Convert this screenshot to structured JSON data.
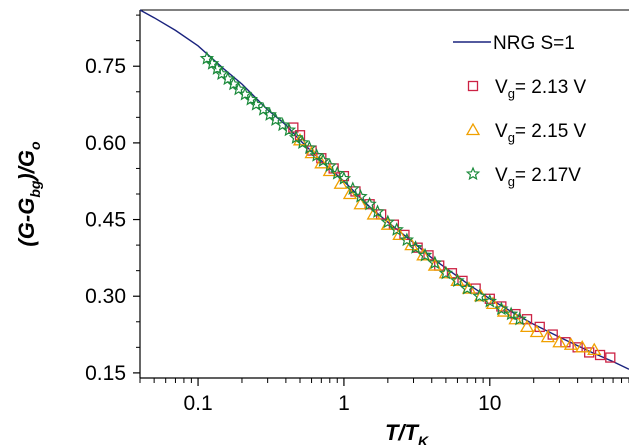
{
  "chart_data": {
    "type": "scatter",
    "xscale": "log",
    "xlim": [
      0.04,
      90
    ],
    "ylim": [
      0.14,
      0.86
    ],
    "x_ticks": [
      {
        "value": 0.1,
        "label": "0.1"
      },
      {
        "value": 1,
        "label": "1"
      },
      {
        "value": 10,
        "label": "10"
      }
    ],
    "y_ticks": [
      {
        "value": 0.15,
        "label": "0.15"
      },
      {
        "value": 0.3,
        "label": "0.30"
      },
      {
        "value": 0.45,
        "label": "0.45"
      },
      {
        "value": 0.6,
        "label": "0.60"
      },
      {
        "value": 0.75,
        "label": "0.75"
      }
    ],
    "xlabel": {
      "main": "T/T",
      "sub": "K"
    },
    "ylabel": {
      "pre": "(G-G",
      "sub1": "bg",
      "mid": ")/G",
      "sub2": "o"
    },
    "legend_position": "top-right",
    "series": [
      {
        "name": "NRG S=1",
        "marker": "line",
        "color": "#1a237e",
        "points": [
          [
            0.04,
            0.86
          ],
          [
            0.05,
            0.845
          ],
          [
            0.07,
            0.82
          ],
          [
            0.1,
            0.79
          ],
          [
            0.15,
            0.745
          ],
          [
            0.2,
            0.715
          ],
          [
            0.3,
            0.665
          ],
          [
            0.4,
            0.635
          ],
          [
            0.5,
            0.605
          ],
          [
            0.7,
            0.565
          ],
          [
            1.0,
            0.525
          ],
          [
            1.5,
            0.475
          ],
          [
            2.0,
            0.445
          ],
          [
            3.0,
            0.405
          ],
          [
            4.0,
            0.375
          ],
          [
            5.0,
            0.355
          ],
          [
            7.0,
            0.325
          ],
          [
            10.0,
            0.295
          ],
          [
            15.0,
            0.265
          ],
          [
            20.0,
            0.245
          ],
          [
            30.0,
            0.22
          ],
          [
            50.0,
            0.19
          ],
          [
            70.0,
            0.172
          ],
          [
            90.0,
            0.157
          ]
        ]
      },
      {
        "name": "V<sub>g</sub>= 2.13 V",
        "legend": {
          "pre": "V",
          "sub": "g",
          "post": "= 2.13 V"
        },
        "marker": "square",
        "color": "#cc2244",
        "points": [
          [
            0.45,
            0.63
          ],
          [
            0.5,
            0.615
          ],
          [
            0.6,
            0.585
          ],
          [
            0.7,
            0.57
          ],
          [
            0.85,
            0.55
          ],
          [
            1.0,
            0.535
          ],
          [
            1.2,
            0.505
          ],
          [
            1.5,
            0.48
          ],
          [
            1.8,
            0.46
          ],
          [
            2.2,
            0.44
          ],
          [
            2.6,
            0.42
          ],
          [
            3.2,
            0.395
          ],
          [
            3.8,
            0.38
          ],
          [
            4.5,
            0.36
          ],
          [
            5.5,
            0.345
          ],
          [
            6.5,
            0.33
          ],
          [
            8.0,
            0.315
          ],
          [
            10.0,
            0.295
          ],
          [
            12.0,
            0.28
          ],
          [
            15.0,
            0.265
          ],
          [
            18.0,
            0.255
          ],
          [
            22.0,
            0.24
          ],
          [
            27.0,
            0.225
          ],
          [
            33.0,
            0.21
          ],
          [
            40.0,
            0.2
          ],
          [
            48.0,
            0.19
          ],
          [
            57.0,
            0.185
          ],
          [
            67.0,
            0.18
          ]
        ]
      },
      {
        "name": "V<sub>g</sub>= 2.15 V",
        "legend": {
          "pre": "V",
          "sub": "g",
          "post": "= 2.15 V"
        },
        "marker": "triangle",
        "color": "#f0a000",
        "points": [
          [
            0.5,
            0.605
          ],
          [
            0.6,
            0.58
          ],
          [
            0.7,
            0.56
          ],
          [
            0.8,
            0.545
          ],
          [
            0.95,
            0.52
          ],
          [
            1.1,
            0.5
          ],
          [
            1.3,
            0.48
          ],
          [
            1.6,
            0.46
          ],
          [
            2.0,
            0.44
          ],
          [
            2.4,
            0.42
          ],
          [
            2.9,
            0.4
          ],
          [
            3.5,
            0.38
          ],
          [
            4.2,
            0.36
          ],
          [
            5.0,
            0.345
          ],
          [
            6.0,
            0.33
          ],
          [
            7.2,
            0.315
          ],
          [
            8.7,
            0.3
          ],
          [
            10.5,
            0.285
          ],
          [
            12.5,
            0.27
          ],
          [
            15.0,
            0.255
          ],
          [
            18.0,
            0.24
          ],
          [
            21.0,
            0.23
          ],
          [
            25.0,
            0.22
          ],
          [
            30.0,
            0.21
          ],
          [
            36.0,
            0.205
          ],
          [
            43.0,
            0.2
          ],
          [
            52.0,
            0.195
          ]
        ]
      },
      {
        "name": "V<sub>g</sub>= 2.17V",
        "legend": {
          "pre": "V",
          "sub": "g",
          "post": "= 2.17V"
        },
        "marker": "star",
        "color": "#1a8a3a",
        "points": [
          [
            0.115,
            0.765
          ],
          [
            0.125,
            0.755
          ],
          [
            0.135,
            0.745
          ],
          [
            0.145,
            0.735
          ],
          [
            0.16,
            0.725
          ],
          [
            0.175,
            0.715
          ],
          [
            0.19,
            0.705
          ],
          [
            0.21,
            0.695
          ],
          [
            0.23,
            0.685
          ],
          [
            0.25,
            0.675
          ],
          [
            0.28,
            0.665
          ],
          [
            0.31,
            0.655
          ],
          [
            0.34,
            0.645
          ],
          [
            0.38,
            0.635
          ],
          [
            0.42,
            0.625
          ],
          [
            0.47,
            0.61
          ],
          [
            0.52,
            0.6
          ],
          [
            0.58,
            0.59
          ],
          [
            0.65,
            0.575
          ],
          [
            0.72,
            0.565
          ],
          [
            0.8,
            0.555
          ],
          [
            0.9,
            0.54
          ],
          [
            1.0,
            0.53
          ],
          [
            1.15,
            0.51
          ],
          [
            1.3,
            0.495
          ],
          [
            1.5,
            0.48
          ],
          [
            1.7,
            0.465
          ],
          [
            2.0,
            0.445
          ],
          [
            2.3,
            0.43
          ],
          [
            2.7,
            0.41
          ],
          [
            3.1,
            0.395
          ],
          [
            3.6,
            0.38
          ],
          [
            4.2,
            0.365
          ],
          [
            5.0,
            0.345
          ],
          [
            6.0,
            0.33
          ],
          [
            7.0,
            0.315
          ],
          [
            8.5,
            0.3
          ],
          [
            10.0,
            0.29
          ],
          [
            12.0,
            0.275
          ],
          [
            14.0,
            0.265
          ],
          [
            16.0,
            0.255
          ]
        ]
      }
    ]
  }
}
